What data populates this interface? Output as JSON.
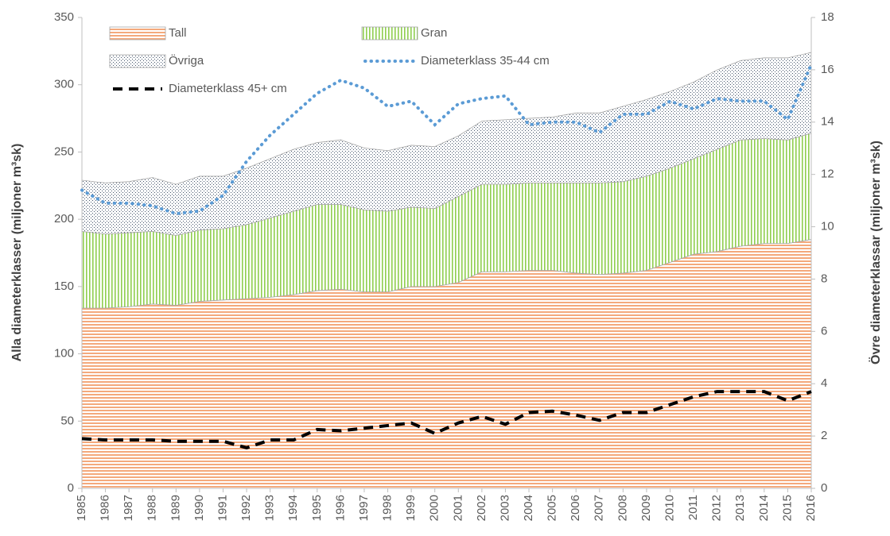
{
  "chart_data": {
    "type": "stacked_area_line",
    "y_label": "Alla diameterklasser (miljoner m³sk)",
    "y2_label": "Övre diameterklassar (miljoner m³sk)",
    "categories": [
      "1985",
      "1986",
      "1987",
      "1988",
      "1989",
      "1990",
      "1991",
      "1992",
      "1993",
      "1994",
      "1995",
      "1996",
      "1997",
      "1998",
      "1999",
      "2000",
      "2001",
      "2002",
      "2003",
      "2004",
      "2005",
      "2006",
      "2007",
      "2008",
      "2009",
      "2010",
      "2011",
      "2012",
      "2013",
      "2014",
      "2015",
      "2016"
    ],
    "ylim": [
      0,
      350
    ],
    "yticks": [
      0,
      50,
      100,
      150,
      200,
      250,
      300,
      350
    ],
    "y2lim": [
      0,
      18
    ],
    "y2ticks": [
      0,
      2,
      4,
      6,
      8,
      10,
      12,
      14,
      16,
      18
    ],
    "legend": "upper left",
    "grid": false,
    "series": [
      {
        "name": "Tall",
        "kind": "area",
        "pattern": "horizontal",
        "color": "#f4a97c",
        "values": [
          134,
          134,
          135,
          137,
          136,
          139,
          140,
          141,
          142,
          144,
          147,
          148,
          146,
          146,
          150,
          150,
          153,
          161,
          161,
          162,
          162,
          160,
          159,
          160,
          162,
          168,
          174,
          176,
          180,
          182,
          182,
          185
        ]
      },
      {
        "name": "Gran",
        "kind": "area",
        "pattern": "vertical",
        "color": "#8fce4f",
        "values": [
          57,
          55,
          55,
          54,
          52,
          53,
          53,
          55,
          59,
          62,
          64,
          63,
          61,
          60,
          59,
          58,
          64,
          65,
          65,
          65,
          65,
          67,
          68,
          68,
          70,
          70,
          71,
          76,
          79,
          78,
          77,
          79
        ]
      },
      {
        "name": "Övriga",
        "kind": "area",
        "pattern": "dots",
        "color": "#44546a",
        "values": [
          38,
          38,
          38,
          40,
          38,
          40,
          39,
          42,
          44,
          46,
          46,
          48,
          46,
          45,
          46,
          46,
          45,
          47,
          48,
          48,
          49,
          52,
          52,
          56,
          57,
          57,
          57,
          59,
          59,
          60,
          61,
          60
        ]
      },
      {
        "name": "Diameterklass 35-44 cm",
        "kind": "line",
        "dash": "dotted",
        "axis": "y2",
        "color": "#5b9bd5",
        "values": [
          11.4,
          10.9,
          10.9,
          10.8,
          10.5,
          10.6,
          11.2,
          12.5,
          13.5,
          14.3,
          15.1,
          15.6,
          15.3,
          14.6,
          14.8,
          13.9,
          14.7,
          14.9,
          15.0,
          13.9,
          14.0,
          14.0,
          13.6,
          14.3,
          14.3,
          14.8,
          14.5,
          14.9,
          14.8,
          14.8,
          14.1,
          16.2
        ]
      },
      {
        "name": "Diameterklass 45+ cm",
        "kind": "line",
        "dash": "dashed",
        "axis": "y2",
        "color": "#000000",
        "values": [
          1.9,
          1.85,
          1.85,
          1.85,
          1.8,
          1.8,
          1.8,
          1.55,
          1.85,
          1.85,
          2.25,
          2.2,
          2.3,
          2.4,
          2.5,
          2.1,
          2.5,
          2.75,
          2.45,
          2.9,
          2.95,
          2.8,
          2.6,
          2.9,
          2.9,
          3.2,
          3.5,
          3.7,
          3.7,
          3.7,
          3.35,
          3.7
        ]
      }
    ]
  }
}
